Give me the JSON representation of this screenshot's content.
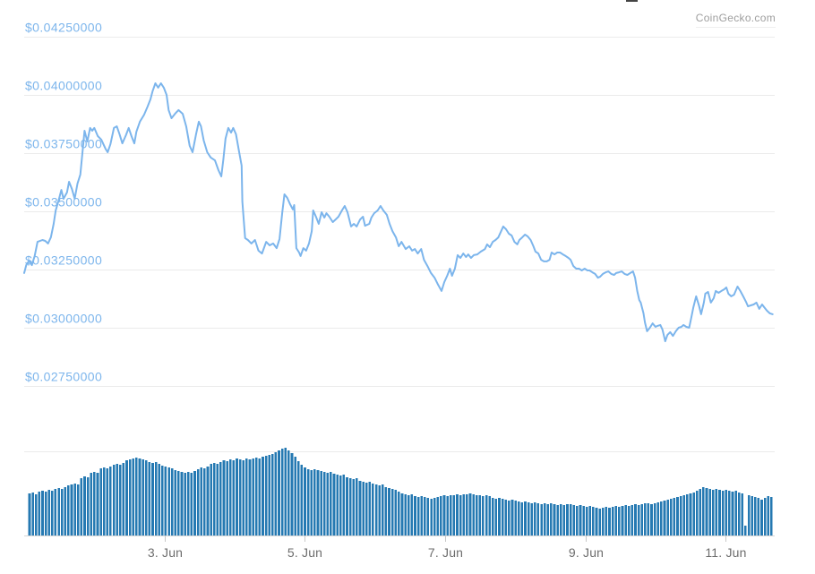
{
  "watermark": {
    "text": "CoinGecko.com"
  },
  "colors": {
    "price_line": "#7cb5ec",
    "y_axis_label": "#7cb5ec",
    "x_axis_label": "#6d6d6d",
    "volume_bar": "#2579b2",
    "gridline": "#ebebeb",
    "axis_line": "#d6d6d6",
    "tick": "#c8c8c8",
    "watermark_text": "#9e9e9e",
    "background": "#ffffff"
  },
  "chart_data": {
    "type": "line",
    "title": "",
    "xlabel": "",
    "ylabel": "",
    "legend": "none",
    "grid": true,
    "y_axis": {
      "tick_labels": [
        "$0.04250000",
        "$0.04000000",
        "$0.03750000",
        "$0.03500000",
        "$0.03250000",
        "$0.03000000",
        "$0.02750000"
      ],
      "tick_values": [
        0.0425,
        0.04,
        0.0375,
        0.035,
        0.0325,
        0.03,
        0.0275
      ],
      "ylim": [
        0.0275,
        0.0425
      ],
      "currency": "USD"
    },
    "x_axis": {
      "tick_labels": [
        "3. Jun",
        "5. Jun",
        "7. Jun",
        "9. Jun",
        "11. Jun"
      ],
      "tick_days": [
        3,
        5,
        7,
        9,
        11
      ],
      "range_days": [
        1.0,
        11.7
      ]
    },
    "price_series": {
      "unit": "USD per coin",
      "points": [
        [
          1.0,
          0.03235
        ],
        [
          1.03,
          0.03269
        ],
        [
          1.07,
          0.03288
        ],
        [
          1.11,
          0.03269
        ],
        [
          1.15,
          0.03308
        ],
        [
          1.19,
          0.03369
        ],
        [
          1.26,
          0.03377
        ],
        [
          1.3,
          0.03373
        ],
        [
          1.34,
          0.03362
        ],
        [
          1.38,
          0.03388
        ],
        [
          1.42,
          0.03446
        ],
        [
          1.45,
          0.03504
        ],
        [
          1.49,
          0.03546
        ],
        [
          1.53,
          0.03592
        ],
        [
          1.56,
          0.03554
        ],
        [
          1.61,
          0.03581
        ],
        [
          1.64,
          0.03627
        ],
        [
          1.68,
          0.03596
        ],
        [
          1.72,
          0.03554
        ],
        [
          1.76,
          0.03619
        ],
        [
          1.8,
          0.03658
        ],
        [
          1.83,
          0.0375
        ],
        [
          1.86,
          0.03846
        ],
        [
          1.9,
          0.038
        ],
        [
          1.94,
          0.03858
        ],
        [
          1.97,
          0.03846
        ],
        [
          2.0,
          0.03858
        ],
        [
          2.05,
          0.03823
        ],
        [
          2.1,
          0.03808
        ],
        [
          2.16,
          0.03769
        ],
        [
          2.19,
          0.03754
        ],
        [
          2.23,
          0.03788
        ],
        [
          2.28,
          0.03858
        ],
        [
          2.32,
          0.03865
        ],
        [
          2.36,
          0.03831
        ],
        [
          2.4,
          0.03792
        ],
        [
          2.45,
          0.03827
        ],
        [
          2.49,
          0.03858
        ],
        [
          2.53,
          0.03823
        ],
        [
          2.57,
          0.03792
        ],
        [
          2.6,
          0.03842
        ],
        [
          2.65,
          0.03885
        ],
        [
          2.71,
          0.03915
        ],
        [
          2.76,
          0.0395
        ],
        [
          2.8,
          0.03981
        ],
        [
          2.83,
          0.04015
        ],
        [
          2.87,
          0.0405
        ],
        [
          2.91,
          0.04031
        ],
        [
          2.95,
          0.0405
        ],
        [
          2.99,
          0.04031
        ],
        [
          3.03,
          0.04
        ],
        [
          3.06,
          0.03935
        ],
        [
          3.1,
          0.039
        ],
        [
          3.15,
          0.03919
        ],
        [
          3.2,
          0.03935
        ],
        [
          3.26,
          0.03919
        ],
        [
          3.31,
          0.03865
        ],
        [
          3.36,
          0.03781
        ],
        [
          3.4,
          0.03754
        ],
        [
          3.45,
          0.03831
        ],
        [
          3.49,
          0.03885
        ],
        [
          3.52,
          0.03865
        ],
        [
          3.56,
          0.03804
        ],
        [
          3.61,
          0.03754
        ],
        [
          3.66,
          0.03731
        ],
        [
          3.72,
          0.03719
        ],
        [
          3.77,
          0.03677
        ],
        [
          3.81,
          0.0365
        ],
        [
          3.84,
          0.03723
        ],
        [
          3.87,
          0.03812
        ],
        [
          3.91,
          0.03858
        ],
        [
          3.95,
          0.03838
        ],
        [
          3.98,
          0.03858
        ],
        [
          4.02,
          0.03831
        ],
        [
          4.06,
          0.03762
        ],
        [
          4.1,
          0.03696
        ],
        [
          4.11,
          0.03542
        ],
        [
          4.15,
          0.03385
        ],
        [
          4.19,
          0.03377
        ],
        [
          4.24,
          0.03362
        ],
        [
          4.29,
          0.03377
        ],
        [
          4.34,
          0.03331
        ],
        [
          4.39,
          0.03319
        ],
        [
          4.45,
          0.03369
        ],
        [
          4.5,
          0.03354
        ],
        [
          4.55,
          0.03362
        ],
        [
          4.6,
          0.03342
        ],
        [
          4.64,
          0.03381
        ],
        [
          4.68,
          0.03496
        ],
        [
          4.71,
          0.03573
        ],
        [
          4.75,
          0.03558
        ],
        [
          4.79,
          0.03531
        ],
        [
          4.83,
          0.03508
        ],
        [
          4.85,
          0.03527
        ],
        [
          4.88,
          0.03342
        ],
        [
          4.92,
          0.03323
        ],
        [
          4.94,
          0.03308
        ],
        [
          4.98,
          0.03342
        ],
        [
          5.02,
          0.03331
        ],
        [
          5.06,
          0.03362
        ],
        [
          5.1,
          0.03415
        ],
        [
          5.12,
          0.03504
        ],
        [
          5.16,
          0.03477
        ],
        [
          5.2,
          0.03446
        ],
        [
          5.24,
          0.03496
        ],
        [
          5.28,
          0.03473
        ],
        [
          5.31,
          0.03492
        ],
        [
          5.35,
          0.03477
        ],
        [
          5.4,
          0.03454
        ],
        [
          5.44,
          0.03465
        ],
        [
          5.48,
          0.03477
        ],
        [
          5.53,
          0.03504
        ],
        [
          5.57,
          0.03523
        ],
        [
          5.61,
          0.03496
        ],
        [
          5.66,
          0.03435
        ],
        [
          5.7,
          0.03446
        ],
        [
          5.74,
          0.03435
        ],
        [
          5.79,
          0.03465
        ],
        [
          5.83,
          0.03477
        ],
        [
          5.86,
          0.03438
        ],
        [
          5.92,
          0.03446
        ],
        [
          5.95,
          0.03473
        ],
        [
          5.99,
          0.03492
        ],
        [
          6.04,
          0.03504
        ],
        [
          6.08,
          0.03523
        ],
        [
          6.12,
          0.03504
        ],
        [
          6.17,
          0.03485
        ],
        [
          6.21,
          0.03446
        ],
        [
          6.25,
          0.03415
        ],
        [
          6.3,
          0.03388
        ],
        [
          6.34,
          0.0335
        ],
        [
          6.38,
          0.03369
        ],
        [
          6.44,
          0.03338
        ],
        [
          6.49,
          0.0335
        ],
        [
          6.53,
          0.03331
        ],
        [
          6.57,
          0.03338
        ],
        [
          6.61,
          0.03319
        ],
        [
          6.66,
          0.03338
        ],
        [
          6.7,
          0.03292
        ],
        [
          6.75,
          0.03265
        ],
        [
          6.8,
          0.03235
        ],
        [
          6.85,
          0.03215
        ],
        [
          6.9,
          0.03185
        ],
        [
          6.95,
          0.03158
        ],
        [
          6.99,
          0.03196
        ],
        [
          7.03,
          0.03223
        ],
        [
          7.07,
          0.03254
        ],
        [
          7.1,
          0.03223
        ],
        [
          7.14,
          0.03254
        ],
        [
          7.18,
          0.03312
        ],
        [
          7.22,
          0.033
        ],
        [
          7.26,
          0.03319
        ],
        [
          7.3,
          0.03304
        ],
        [
          7.33,
          0.03315
        ],
        [
          7.37,
          0.033
        ],
        [
          7.41,
          0.03312
        ],
        [
          7.46,
          0.03315
        ],
        [
          7.51,
          0.03327
        ],
        [
          7.57,
          0.03338
        ],
        [
          7.6,
          0.03358
        ],
        [
          7.64,
          0.03346
        ],
        [
          7.68,
          0.03369
        ],
        [
          7.72,
          0.03377
        ],
        [
          7.76,
          0.03388
        ],
        [
          7.8,
          0.03415
        ],
        [
          7.83,
          0.03435
        ],
        [
          7.87,
          0.03423
        ],
        [
          7.91,
          0.03404
        ],
        [
          7.95,
          0.03396
        ],
        [
          7.99,
          0.03369
        ],
        [
          8.03,
          0.03358
        ],
        [
          8.06,
          0.03377
        ],
        [
          8.1,
          0.03388
        ],
        [
          8.14,
          0.034
        ],
        [
          8.18,
          0.03392
        ],
        [
          8.22,
          0.03377
        ],
        [
          8.26,
          0.0335
        ],
        [
          8.29,
          0.03327
        ],
        [
          8.33,
          0.03319
        ],
        [
          8.37,
          0.03292
        ],
        [
          8.41,
          0.03285
        ],
        [
          8.45,
          0.03285
        ],
        [
          8.49,
          0.03292
        ],
        [
          8.52,
          0.03323
        ],
        [
          8.56,
          0.03315
        ],
        [
          8.6,
          0.03323
        ],
        [
          8.64,
          0.03323
        ],
        [
          8.68,
          0.03315
        ],
        [
          8.72,
          0.03308
        ],
        [
          8.76,
          0.033
        ],
        [
          8.79,
          0.03292
        ],
        [
          8.83,
          0.03265
        ],
        [
          8.87,
          0.03254
        ],
        [
          8.91,
          0.03254
        ],
        [
          8.95,
          0.03246
        ],
        [
          8.99,
          0.03254
        ],
        [
          9.03,
          0.03246
        ],
        [
          9.06,
          0.03246
        ],
        [
          9.1,
          0.03238
        ],
        [
          9.14,
          0.03231
        ],
        [
          9.18,
          0.03215
        ],
        [
          9.21,
          0.03219
        ],
        [
          9.25,
          0.03231
        ],
        [
          9.29,
          0.03238
        ],
        [
          9.33,
          0.03242
        ],
        [
          9.37,
          0.03231
        ],
        [
          9.41,
          0.03227
        ],
        [
          9.44,
          0.03235
        ],
        [
          9.48,
          0.03238
        ],
        [
          9.52,
          0.03242
        ],
        [
          9.56,
          0.03231
        ],
        [
          9.6,
          0.03227
        ],
        [
          9.64,
          0.03235
        ],
        [
          9.68,
          0.03242
        ],
        [
          9.71,
          0.03215
        ],
        [
          9.74,
          0.03158
        ],
        [
          9.77,
          0.03119
        ],
        [
          9.79,
          0.03108
        ],
        [
          9.83,
          0.03062
        ],
        [
          9.85,
          0.03023
        ],
        [
          9.88,
          0.02985
        ],
        [
          9.92,
          0.03
        ],
        [
          9.96,
          0.03019
        ],
        [
          10.0,
          0.03004
        ],
        [
          10.03,
          0.03008
        ],
        [
          10.07,
          0.03012
        ],
        [
          10.1,
          0.02992
        ],
        [
          10.14,
          0.02942
        ],
        [
          10.17,
          0.02969
        ],
        [
          10.21,
          0.02981
        ],
        [
          10.25,
          0.02965
        ],
        [
          10.29,
          0.02985
        ],
        [
          10.33,
          0.03
        ],
        [
          10.37,
          0.03004
        ],
        [
          10.4,
          0.03012
        ],
        [
          10.44,
          0.03004
        ],
        [
          10.48,
          0.03
        ],
        [
          10.51,
          0.03042
        ],
        [
          10.54,
          0.03088
        ],
        [
          10.58,
          0.03135
        ],
        [
          10.62,
          0.03096
        ],
        [
          10.65,
          0.03058
        ],
        [
          10.69,
          0.03108
        ],
        [
          10.71,
          0.03146
        ],
        [
          10.75,
          0.03154
        ],
        [
          10.79,
          0.03108
        ],
        [
          10.83,
          0.03127
        ],
        [
          10.86,
          0.03158
        ],
        [
          10.9,
          0.0315
        ],
        [
          10.94,
          0.03158
        ],
        [
          10.98,
          0.03165
        ],
        [
          11.01,
          0.03173
        ],
        [
          11.04,
          0.03146
        ],
        [
          11.08,
          0.03135
        ],
        [
          11.12,
          0.03142
        ],
        [
          11.17,
          0.03177
        ],
        [
          11.21,
          0.03158
        ],
        [
          11.25,
          0.03135
        ],
        [
          11.29,
          0.03112
        ],
        [
          11.32,
          0.03092
        ],
        [
          11.36,
          0.03096
        ],
        [
          11.4,
          0.031
        ],
        [
          11.44,
          0.03108
        ],
        [
          11.48,
          0.03081
        ],
        [
          11.52,
          0.031
        ],
        [
          11.55,
          0.03088
        ],
        [
          11.59,
          0.03073
        ],
        [
          11.63,
          0.03062
        ],
        [
          11.67,
          0.03058
        ]
      ]
    },
    "volume_series": {
      "unit": "relative height, max = 98",
      "max": 98,
      "values": [
        47,
        48,
        46,
        49,
        50,
        49,
        51,
        50,
        52,
        53,
        52,
        54,
        56,
        57,
        58,
        57,
        64,
        66,
        65,
        70,
        71,
        70,
        75,
        76,
        75,
        77,
        79,
        80,
        79,
        81,
        84,
        85,
        86,
        87,
        86,
        85,
        84,
        82,
        81,
        82,
        80,
        78,
        77,
        76,
        75,
        73,
        72,
        71,
        70,
        71,
        70,
        72,
        74,
        76,
        75,
        77,
        80,
        81,
        80,
        82,
        84,
        83,
        85,
        84,
        86,
        85,
        84,
        86,
        85,
        86,
        87,
        86,
        88,
        89,
        90,
        91,
        93,
        95,
        97,
        98,
        95,
        92,
        88,
        83,
        79,
        76,
        74,
        73,
        74,
        73,
        72,
        71,
        70,
        71,
        69,
        68,
        67,
        68,
        65,
        64,
        63,
        64,
        61,
        60,
        59,
        60,
        58,
        57,
        56,
        57,
        54,
        53,
        52,
        51,
        49,
        47,
        46,
        45,
        46,
        44,
        43,
        44,
        43,
        42,
        41,
        42,
        43,
        44,
        45,
        44,
        45,
        45,
        46,
        45,
        46,
        46,
        47,
        46,
        45,
        45,
        44,
        45,
        44,
        42,
        41,
        42,
        41,
        40,
        39,
        40,
        39,
        38,
        37,
        38,
        37,
        36,
        37,
        36,
        35,
        36,
        35,
        36,
        35,
        34,
        35,
        34,
        35,
        35,
        34,
        33,
        34,
        33,
        32,
        33,
        32,
        31,
        30,
        31,
        32,
        31,
        32,
        33,
        32,
        33,
        34,
        33,
        34,
        35,
        34,
        35,
        36,
        36,
        35,
        36,
        37,
        38,
        39,
        40,
        41,
        42,
        43,
        44,
        45,
        46,
        47,
        48,
        50,
        52,
        54,
        53,
        52,
        51,
        52,
        51,
        50,
        51,
        50,
        49,
        50,
        48,
        47,
        11,
        45,
        44,
        43,
        42,
        40,
        42,
        44,
        43
      ]
    }
  }
}
